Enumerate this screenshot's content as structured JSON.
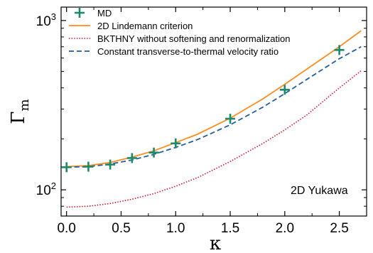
{
  "chart_data": {
    "type": "line",
    "title": "",
    "xlabel": "κ",
    "ylabel_main": "Γ",
    "ylabel_sub": "m",
    "xlim": [
      -0.05,
      2.75
    ],
    "ylim": [
      70,
      1200
    ],
    "yscale": "log",
    "x_ticks": [
      0.0,
      0.5,
      1.0,
      1.5,
      2.0,
      2.5
    ],
    "x_tick_labels": [
      "0.0",
      "0.5",
      "1.0",
      "1.5",
      "2.0",
      "2.5"
    ],
    "y_ticks": [
      100,
      1000
    ],
    "y_tick_labels": [
      {
        "base": "10",
        "exp": "2"
      },
      {
        "base": "10",
        "exp": "3"
      }
    ],
    "annotation": "2D Yukawa",
    "legend_position": "top-left",
    "colors": {
      "md": "#1b8a6b",
      "lindemann": "#ff8c1a",
      "bkthny": "#e0001a",
      "constant": "#1f5fa0"
    },
    "series": [
      {
        "name": "MD",
        "style": "markers-plus",
        "color_key": "md",
        "x": [
          0.0,
          0.2,
          0.4,
          0.6,
          0.8,
          1.0,
          1.5,
          2.0,
          2.5
        ],
        "y": [
          136,
          137,
          141,
          154,
          166,
          188,
          263,
          390,
          670
        ]
      },
      {
        "name": "2D Lindemann criterion",
        "style": "solid",
        "color_key": "lindemann",
        "x": [
          0.0,
          0.2,
          0.4,
          0.6,
          0.8,
          1.0,
          1.2,
          1.5,
          1.8,
          2.0,
          2.2,
          2.5,
          2.7
        ],
        "y": [
          137,
          139,
          145,
          156,
          170,
          190,
          213,
          265,
          345,
          420,
          515,
          700,
          870
        ]
      },
      {
        "name": "BKTHNY without softening and renormalization",
        "style": "dotted",
        "color_key": "bkthny",
        "x": [
          0.0,
          0.2,
          0.4,
          0.6,
          0.8,
          1.0,
          1.2,
          1.5,
          1.8,
          2.0,
          2.2,
          2.5,
          2.7
        ],
        "y": [
          79,
          80,
          83,
          88,
          95,
          105,
          118,
          147,
          188,
          226,
          276,
          400,
          505
        ]
      },
      {
        "name": "Constant transverse-to-thermal velocity ratio",
        "style": "dashed",
        "color_key": "constant",
        "x": [
          0.0,
          0.2,
          0.4,
          0.6,
          0.8,
          1.0,
          1.2,
          1.5,
          1.8,
          2.0,
          2.2,
          2.5,
          2.7
        ],
        "y": [
          136,
          137,
          142,
          150,
          162,
          178,
          198,
          242,
          308,
          370,
          448,
          595,
          700
        ]
      }
    ]
  }
}
